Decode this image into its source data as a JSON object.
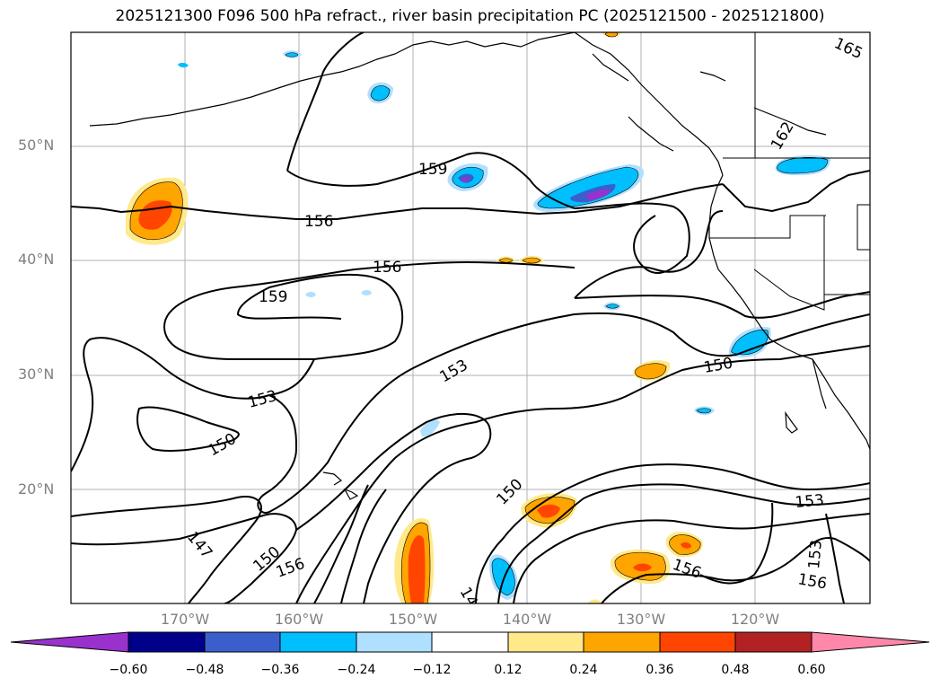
{
  "title": "2025121300 F096 500 hPa refract., river basin precipitation PC (2025121500 - 2025121800)",
  "lat_labels": [
    "50°N",
    "40°N",
    "30°N",
    "20°N"
  ],
  "lon_labels": [
    "170°W",
    "160°W",
    "150°W",
    "140°W",
    "130°W",
    "120°W"
  ],
  "contour_labels": [
    "165",
    "162",
    "159",
    "156",
    "156",
    "159",
    "153",
    "150",
    "153",
    "150",
    "147",
    "150",
    "156",
    "14",
    "150",
    "153",
    "156",
    "153",
    "156"
  ],
  "colorbar": {
    "tick_labels": [
      "−0.60",
      "−0.48",
      "−0.36",
      "−0.24",
      "−0.12",
      "0.12",
      "0.24",
      "0.36",
      "0.48",
      "0.60"
    ],
    "colors": [
      "#9932cc",
      "#00008b",
      "#3a5fcd",
      "#00bfff",
      "#b0e0ff",
      "#ffffff",
      "#ffe98a",
      "#ffa500",
      "#ff4500",
      "#b22222",
      "#ff88aa"
    ]
  }
}
